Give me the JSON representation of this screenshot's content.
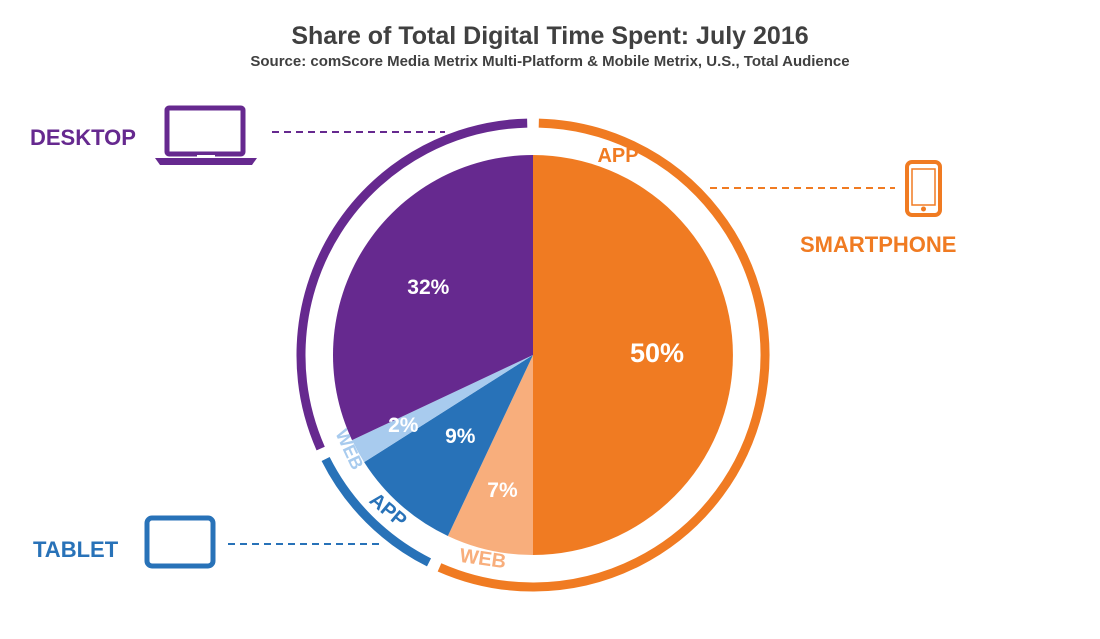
{
  "title": "Share of Total Digital Time Spent: July 2016",
  "subtitle": "Source: comScore Media Metrix Multi-Platform & Mobile Metrix, U.S., Total Audience",
  "colors": {
    "smartphone_app": "#F07B22",
    "smartphone_web": "#F8AE7C",
    "tablet_app": "#2872B8",
    "tablet_web": "#A8CBEE",
    "desktop": "#66298F"
  },
  "chart_data": {
    "type": "pie",
    "slices": [
      {
        "platform": "SMARTPHONE",
        "segment": "APP",
        "value": 50,
        "label": "50%",
        "color": "#F07B22"
      },
      {
        "platform": "SMARTPHONE",
        "segment": "WEB",
        "value": 7,
        "label": "7%",
        "color": "#F8AE7C"
      },
      {
        "platform": "TABLET",
        "segment": "APP",
        "value": 9,
        "label": "9%",
        "color": "#2872B8"
      },
      {
        "platform": "TABLET",
        "segment": "WEB",
        "value": 2,
        "label": "2%",
        "color": "#A8CBEE"
      },
      {
        "platform": "DESKTOP",
        "segment": "",
        "value": 32,
        "label": "32%",
        "color": "#66298F"
      }
    ],
    "platforms": [
      {
        "name": "SMARTPHONE",
        "total": 57,
        "color": "#F07B22",
        "icon": "smartphone-icon"
      },
      {
        "name": "TABLET",
        "total": 11,
        "color": "#2872B8",
        "icon": "tablet-icon"
      },
      {
        "name": "DESKTOP",
        "total": 32,
        "color": "#66298F",
        "icon": "laptop-icon"
      }
    ]
  }
}
